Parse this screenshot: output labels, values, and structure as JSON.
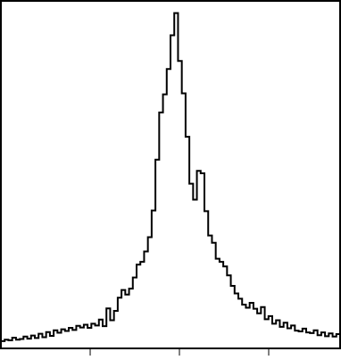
{
  "chart_data": {
    "type": "line",
    "style": "step-histogram",
    "title": "",
    "xlabel": "",
    "ylabel": "",
    "xlim": [
      0,
      1
    ],
    "ylim": [
      0,
      1
    ],
    "grid": false,
    "legend": "none",
    "colors": {
      "line": "#000000",
      "frame": "#000000",
      "background": "#ffffff"
    },
    "x_ticks": [
      0.2632,
      0.5263,
      0.7895
    ],
    "x_tick_labels": [
      "",
      "",
      ""
    ],
    "series": [
      {
        "values": [
          0.021,
          0.025,
          0.023,
          0.031,
          0.025,
          0.027,
          0.034,
          0.028,
          0.037,
          0.03,
          0.042,
          0.032,
          0.047,
          0.036,
          0.052,
          0.045,
          0.055,
          0.05,
          0.059,
          0.053,
          0.065,
          0.06,
          0.068,
          0.059,
          0.071,
          0.066,
          0.083,
          0.064,
          0.115,
          0.081,
          0.108,
          0.146,
          0.168,
          0.155,
          0.172,
          0.204,
          0.241,
          0.249,
          0.279,
          0.32,
          0.397,
          0.543,
          0.679,
          0.731,
          0.804,
          0.901,
          0.965,
          0.827,
          0.734,
          0.609,
          0.474,
          0.428,
          0.511,
          0.504,
          0.395,
          0.325,
          0.304,
          0.258,
          0.249,
          0.236,
          0.21,
          0.18,
          0.158,
          0.143,
          0.126,
          0.117,
          0.131,
          0.114,
          0.101,
          0.119,
          0.084,
          0.093,
          0.071,
          0.081,
          0.062,
          0.074,
          0.058,
          0.066,
          0.051,
          0.049,
          0.057,
          0.046,
          0.044,
          0.052,
          0.038,
          0.046,
          0.035,
          0.043,
          0.034,
          0.041
        ]
      }
    ]
  }
}
